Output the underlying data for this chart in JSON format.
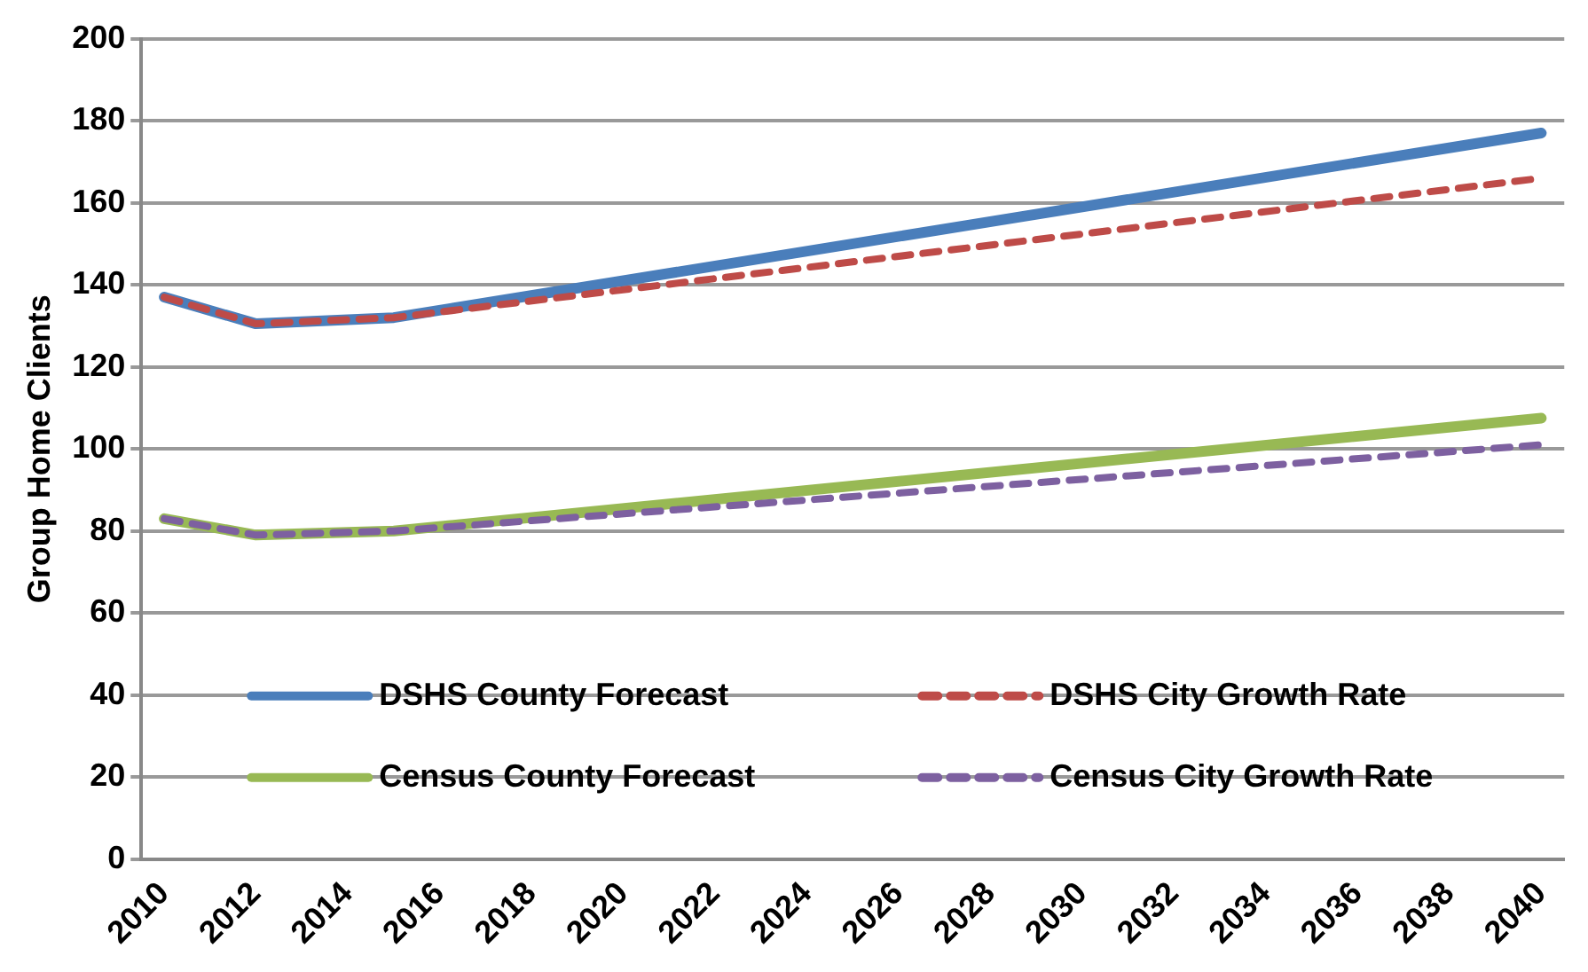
{
  "chart_data": {
    "type": "line",
    "ylabel": "Group Home Clients",
    "categories": [
      "2010",
      null,
      "2012",
      null,
      "2014",
      null,
      "2016",
      null,
      "2018",
      null,
      "2020",
      null,
      "2022",
      null,
      "2024",
      null,
      "2026",
      null,
      "2028",
      null,
      "2030",
      null,
      "2032",
      null,
      "2034",
      null,
      "2036",
      null,
      "2038",
      null,
      "2040"
    ],
    "series": [
      {
        "name": "DSHS County Forecast",
        "color": "#4a7ebb",
        "line_style": "solid",
        "values": [
          137,
          null,
          130.5,
          null,
          null,
          132,
          null,
          null,
          null,
          null,
          null,
          null,
          null,
          null,
          null,
          null,
          null,
          null,
          null,
          null,
          null,
          null,
          null,
          null,
          null,
          null,
          null,
          null,
          null,
          null,
          177
        ]
      },
      {
        "name": "DSHS City Growth Rate",
        "color": "#be4b48",
        "line_style": "dashed",
        "values": [
          137,
          null,
          130.5,
          null,
          null,
          132,
          null,
          null,
          null,
          null,
          null,
          null,
          null,
          null,
          null,
          null,
          null,
          null,
          null,
          null,
          null,
          null,
          null,
          null,
          null,
          null,
          null,
          null,
          null,
          null,
          166
        ]
      },
      {
        "name": "Census County Forecast",
        "color": "#98b954",
        "line_style": "solid",
        "values": [
          83,
          null,
          79,
          null,
          null,
          80,
          null,
          null,
          null,
          null,
          null,
          null,
          null,
          null,
          null,
          null,
          null,
          null,
          null,
          null,
          null,
          null,
          null,
          null,
          null,
          null,
          null,
          null,
          null,
          null,
          107.5
        ]
      },
      {
        "name": "Census City Growth Rate",
        "color": "#7d60a0",
        "line_style": "dashed",
        "values": [
          83,
          null,
          79,
          null,
          null,
          80,
          null,
          null,
          null,
          null,
          null,
          null,
          null,
          null,
          null,
          null,
          null,
          null,
          null,
          null,
          null,
          null,
          null,
          null,
          null,
          null,
          null,
          null,
          null,
          null,
          101
        ]
      }
    ],
    "ylim": [
      0,
      200
    ],
    "yticks": [
      0,
      20,
      40,
      60,
      80,
      100,
      120,
      140,
      160,
      180,
      200
    ],
    "grid": "y",
    "legend": "bottom",
    "marker": "none"
  }
}
